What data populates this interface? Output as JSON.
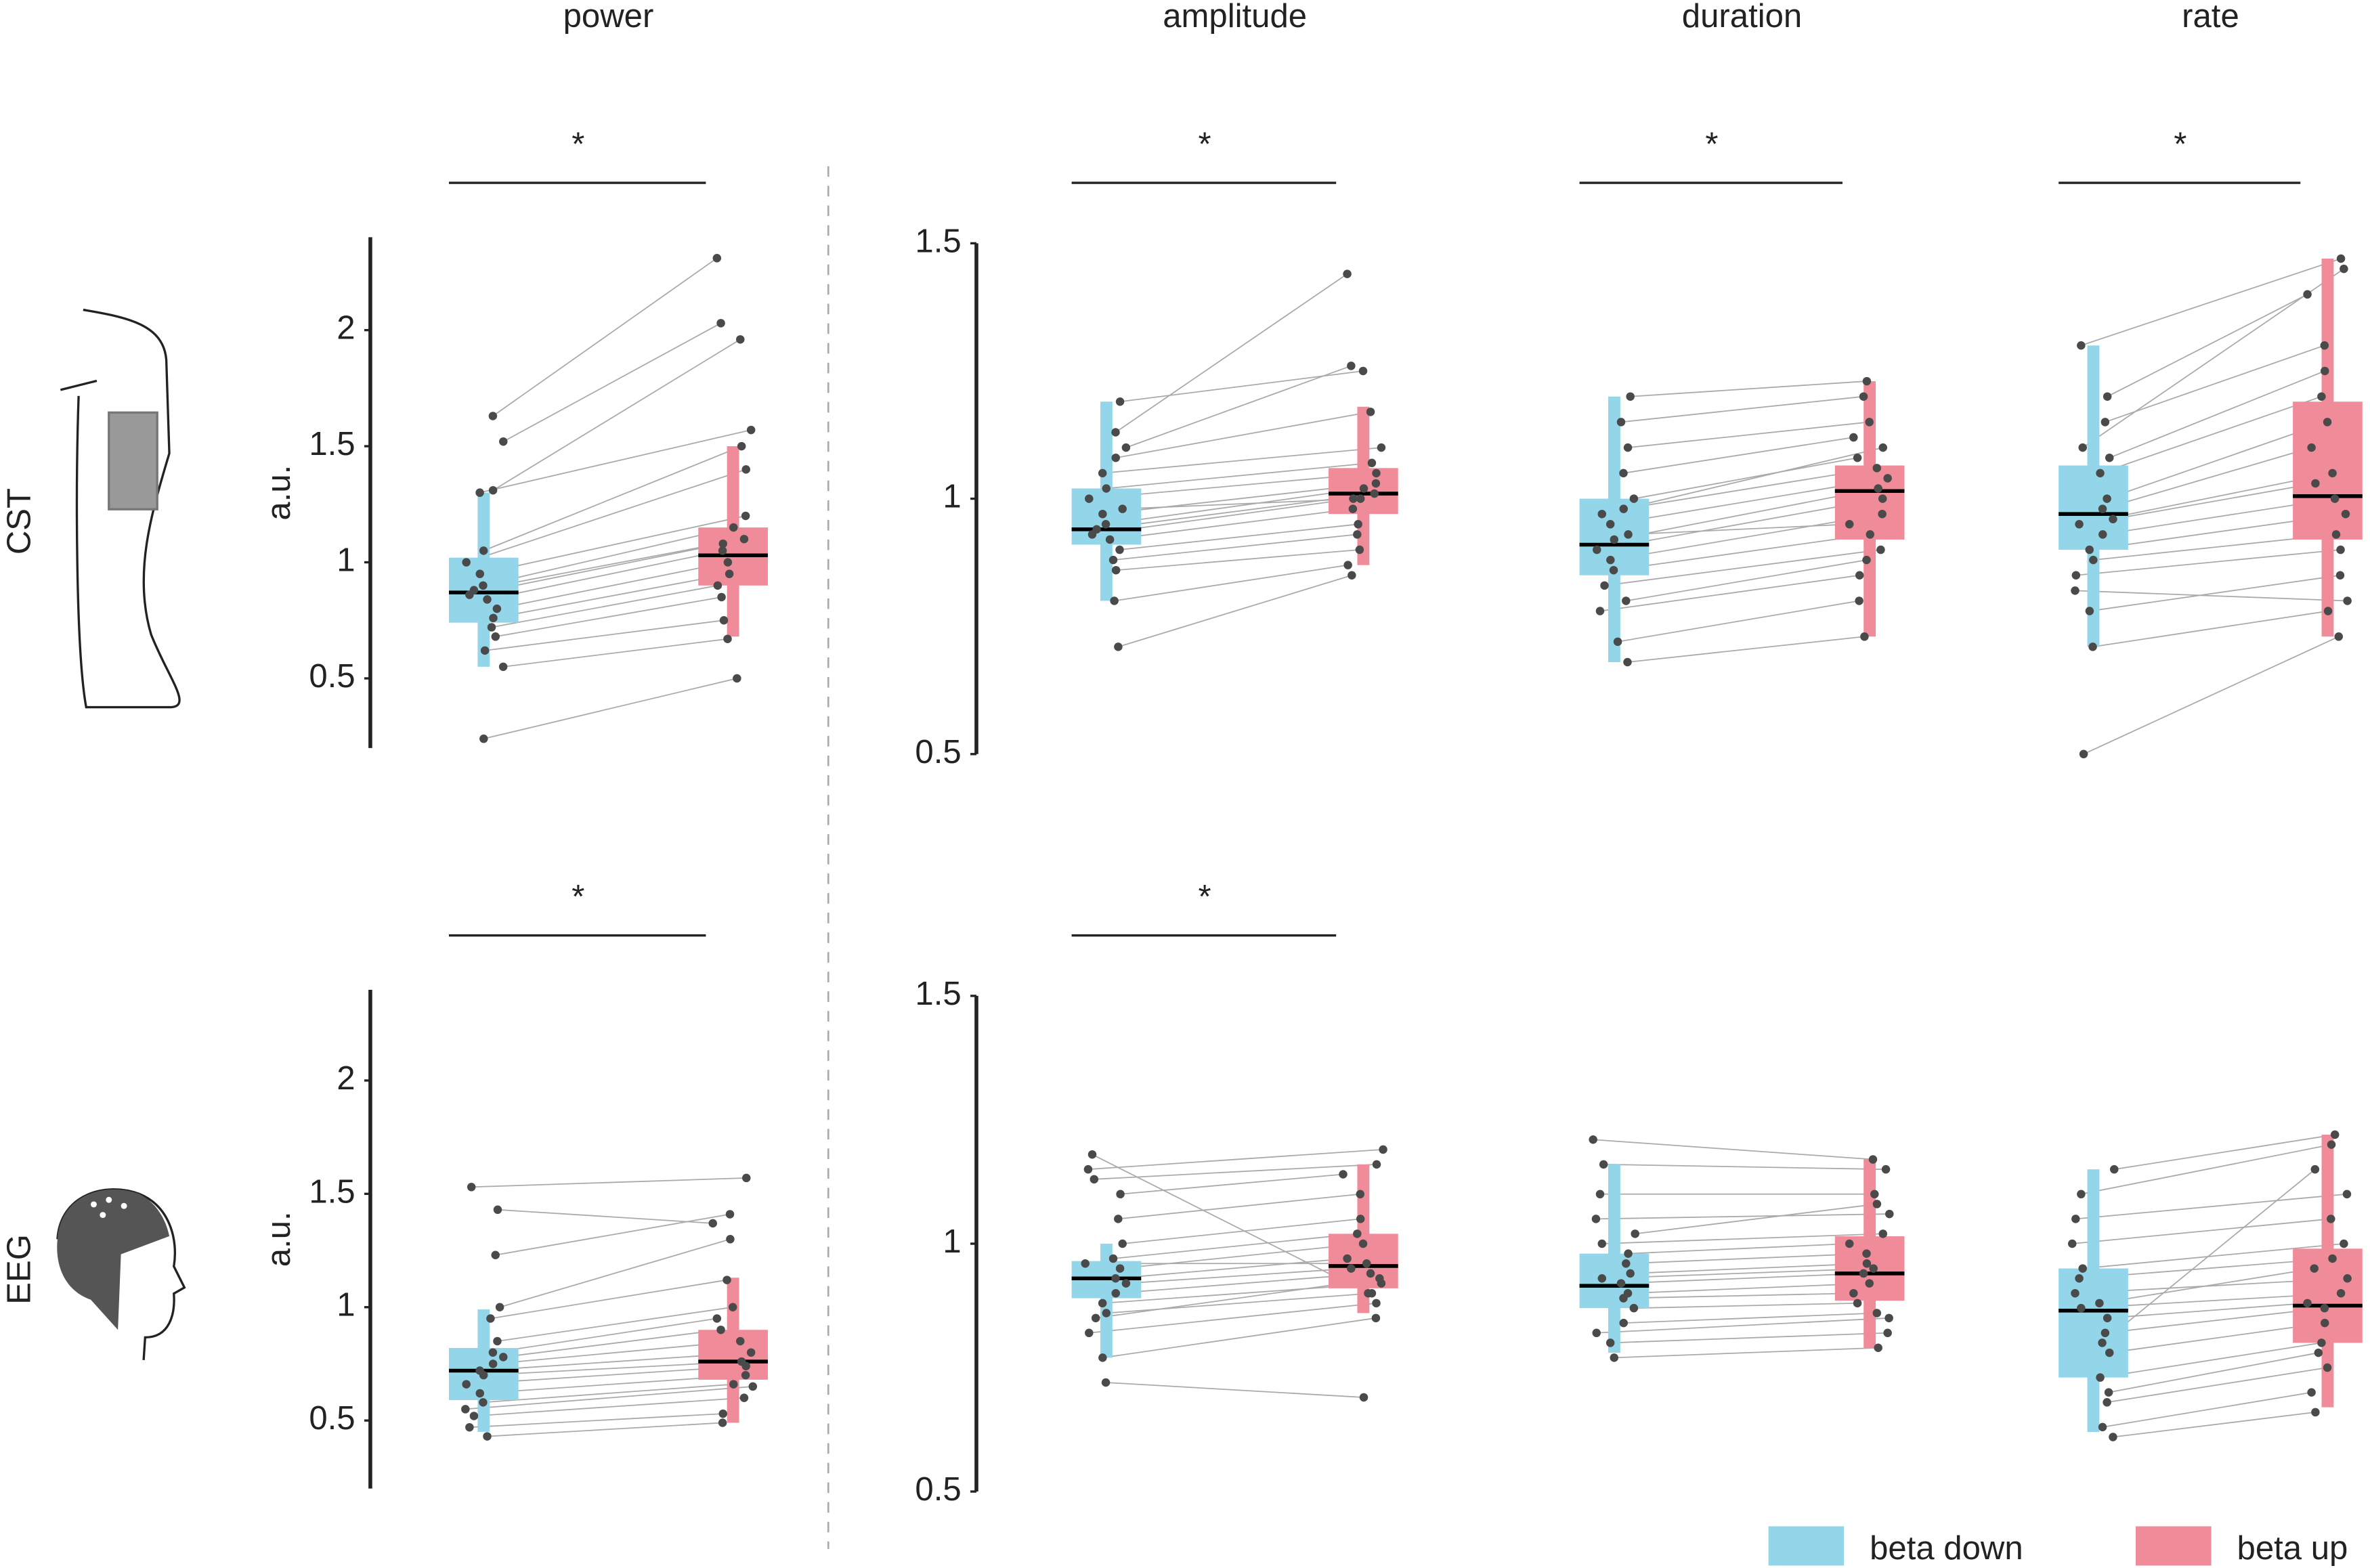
{
  "columns": [
    "power",
    "amplitude",
    "duration",
    "rate"
  ],
  "rows": [
    "CST",
    "EEG"
  ],
  "legend": [
    {
      "name": "beta down",
      "color": "#93d6ea"
    },
    {
      "name": "beta up",
      "color": "#f08c99"
    }
  ],
  "chart_data": [
    {
      "type": "box",
      "ylim": [
        0.2,
        2.4
      ],
      "yticks": [
        0.5,
        1,
        1.5,
        2
      ],
      "ylabel": "a.u.",
      "annotation": "*",
      "groups": [
        {
          "q1": 0.74,
          "median": 0.87,
          "q3": 1.02,
          "whisker_low": 0.55,
          "whisker_high": 1.3,
          "values": [
            0.24,
            0.55,
            0.62,
            0.68,
            0.72,
            0.76,
            0.8,
            0.84,
            0.86,
            0.88,
            0.9,
            0.95,
            1.0,
            1.05,
            1.3,
            1.31,
            1.52,
            1.63
          ]
        },
        {
          "q1": 0.9,
          "median": 1.03,
          "q3": 1.15,
          "whisker_low": 0.68,
          "whisker_high": 1.5,
          "values": [
            0.5,
            0.67,
            0.75,
            0.85,
            0.9,
            0.95,
            1.0,
            1.05,
            1.08,
            1.1,
            1.15,
            1.2,
            1.4,
            1.5,
            1.57,
            1.96,
            2.03,
            2.31
          ]
        }
      ]
    },
    {
      "type": "box",
      "ylim": [
        0.5,
        1.5
      ],
      "yticks": [
        0.5,
        1,
        1.5
      ],
      "annotation": "*",
      "groups": [
        {
          "q1": 0.91,
          "median": 0.94,
          "q3": 1.02,
          "whisker_low": 0.8,
          "whisker_high": 1.19,
          "values": [
            0.71,
            0.8,
            0.86,
            0.9,
            0.92,
            0.93,
            0.94,
            0.95,
            0.97,
            1.0,
            1.02,
            1.05,
            1.08,
            1.1,
            1.13,
            1.19,
            0.88,
            0.98
          ]
        },
        {
          "q1": 0.97,
          "median": 1.01,
          "q3": 1.06,
          "whisker_low": 0.87,
          "whisker_high": 1.18,
          "values": [
            0.85,
            0.87,
            0.9,
            0.95,
            0.98,
            1.0,
            1.01,
            1.02,
            1.03,
            1.05,
            1.07,
            1.1,
            1.17,
            1.26,
            1.44,
            1.25,
            0.93,
            1.0
          ]
        }
      ]
    },
    {
      "type": "box",
      "ylim": [
        0.5,
        1.5
      ],
      "annotation": "*",
      "groups": [
        {
          "q1": 0.85,
          "median": 0.91,
          "q3": 1.0,
          "whisker_low": 0.68,
          "whisker_high": 1.2,
          "values": [
            0.68,
            0.72,
            0.78,
            0.83,
            0.86,
            0.88,
            0.9,
            0.92,
            0.95,
            0.98,
            1.0,
            1.05,
            1.1,
            1.15,
            1.2,
            0.8,
            0.93,
            0.97
          ]
        },
        {
          "q1": 0.92,
          "median": 1.015,
          "q3": 1.065,
          "whisker_low": 0.73,
          "whisker_high": 1.23,
          "values": [
            0.73,
            0.8,
            0.85,
            0.9,
            0.93,
            0.97,
            1.0,
            1.02,
            1.04,
            1.06,
            1.08,
            1.12,
            1.15,
            1.2,
            1.23,
            0.88,
            0.95,
            1.1
          ]
        }
      ]
    },
    {
      "type": "box",
      "ylim": [
        0.5,
        1.5
      ],
      "annotation": "*",
      "groups": [
        {
          "q1": 0.9,
          "median": 0.97,
          "q3": 1.065,
          "whisker_low": 0.71,
          "whisker_high": 1.3,
          "values": [
            0.5,
            0.71,
            0.78,
            0.85,
            0.88,
            0.9,
            0.93,
            0.96,
            0.98,
            1.0,
            1.05,
            1.08,
            1.15,
            1.2,
            1.3,
            0.82,
            0.95,
            1.1
          ]
        },
        {
          "q1": 0.92,
          "median": 1.005,
          "q3": 1.19,
          "whisker_low": 0.73,
          "whisker_high": 1.47,
          "values": [
            0.73,
            0.78,
            0.85,
            0.9,
            0.93,
            0.97,
            1.0,
            1.03,
            1.1,
            1.15,
            1.2,
            1.25,
            1.3,
            1.4,
            1.47,
            0.8,
            1.05,
            1.45
          ]
        }
      ]
    },
    {
      "type": "box",
      "ylim": [
        0.2,
        2.4
      ],
      "yticks": [
        0.5,
        1,
        1.5,
        2
      ],
      "ylabel": "a.u.",
      "annotation": "*",
      "groups": [
        {
          "q1": 0.59,
          "median": 0.72,
          "q3": 0.82,
          "whisker_low": 0.45,
          "whisker_high": 0.99,
          "values": [
            0.43,
            0.47,
            0.52,
            0.58,
            0.62,
            0.66,
            0.7,
            0.72,
            0.75,
            0.78,
            0.8,
            0.85,
            0.95,
            1.0,
            1.23,
            1.43,
            1.53,
            0.55
          ]
        },
        {
          "q1": 0.68,
          "median": 0.76,
          "q3": 0.9,
          "whisker_low": 0.49,
          "whisker_high": 1.13,
          "values": [
            0.49,
            0.53,
            0.6,
            0.66,
            0.7,
            0.74,
            0.76,
            0.8,
            0.85,
            0.9,
            0.95,
            1.0,
            1.12,
            1.3,
            1.41,
            1.37,
            1.57,
            0.65
          ]
        }
      ]
    },
    {
      "type": "box",
      "ylim": [
        0.5,
        1.5
      ],
      "yticks": [
        0.5,
        1,
        1.5
      ],
      "annotation": "*",
      "groups": [
        {
          "q1": 0.89,
          "median": 0.93,
          "q3": 0.965,
          "whisker_low": 0.77,
          "whisker_high": 1.0,
          "values": [
            0.72,
            0.77,
            0.82,
            0.86,
            0.88,
            0.9,
            0.92,
            0.93,
            0.95,
            0.97,
            1.0,
            1.05,
            1.1,
            1.13,
            1.15,
            1.18,
            0.85,
            0.96
          ]
        },
        {
          "q1": 0.91,
          "median": 0.955,
          "q3": 1.02,
          "whisker_low": 0.86,
          "whisker_high": 1.16,
          "values": [
            0.69,
            0.85,
            0.88,
            0.9,
            0.92,
            0.94,
            0.95,
            0.97,
            1.0,
            1.02,
            1.05,
            1.1,
            1.14,
            1.16,
            1.19,
            0.9,
            0.93,
            0.96
          ]
        }
      ]
    },
    {
      "type": "box",
      "ylim": [
        0.5,
        1.5
      ],
      "groups": [
        {
          "q1": 0.87,
          "median": 0.915,
          "q3": 0.98,
          "whisker_low": 0.78,
          "whisker_high": 1.16,
          "values": [
            0.77,
            0.8,
            0.84,
            0.87,
            0.89,
            0.9,
            0.92,
            0.94,
            0.96,
            0.98,
            1.0,
            1.05,
            1.1,
            1.16,
            1.21,
            0.82,
            0.93,
            1.02
          ]
        },
        {
          "q1": 0.885,
          "median": 0.94,
          "q3": 1.015,
          "whisker_low": 0.79,
          "whisker_high": 1.17,
          "values": [
            0.79,
            0.82,
            0.86,
            0.88,
            0.9,
            0.92,
            0.94,
            0.96,
            0.98,
            1.0,
            1.02,
            1.06,
            1.1,
            1.15,
            1.17,
            0.85,
            0.95,
            1.08
          ]
        }
      ]
    },
    {
      "type": "box",
      "ylim": [
        0.5,
        1.5
      ],
      "groups": [
        {
          "q1": 0.73,
          "median": 0.865,
          "q3": 0.95,
          "whisker_low": 0.62,
          "whisker_high": 1.15,
          "values": [
            0.61,
            0.63,
            0.68,
            0.73,
            0.78,
            0.82,
            0.85,
            0.87,
            0.9,
            0.93,
            0.95,
            1.0,
            1.05,
            1.1,
            1.15,
            0.7,
            0.88,
            0.8
          ]
        },
        {
          "q1": 0.8,
          "median": 0.875,
          "q3": 0.99,
          "whisker_low": 0.67,
          "whisker_high": 1.22,
          "values": [
            0.66,
            0.7,
            0.75,
            0.8,
            0.84,
            0.87,
            0.88,
            0.9,
            0.93,
            0.97,
            1.0,
            1.05,
            1.1,
            1.2,
            1.22,
            0.78,
            0.95,
            1.15
          ]
        }
      ]
    }
  ]
}
